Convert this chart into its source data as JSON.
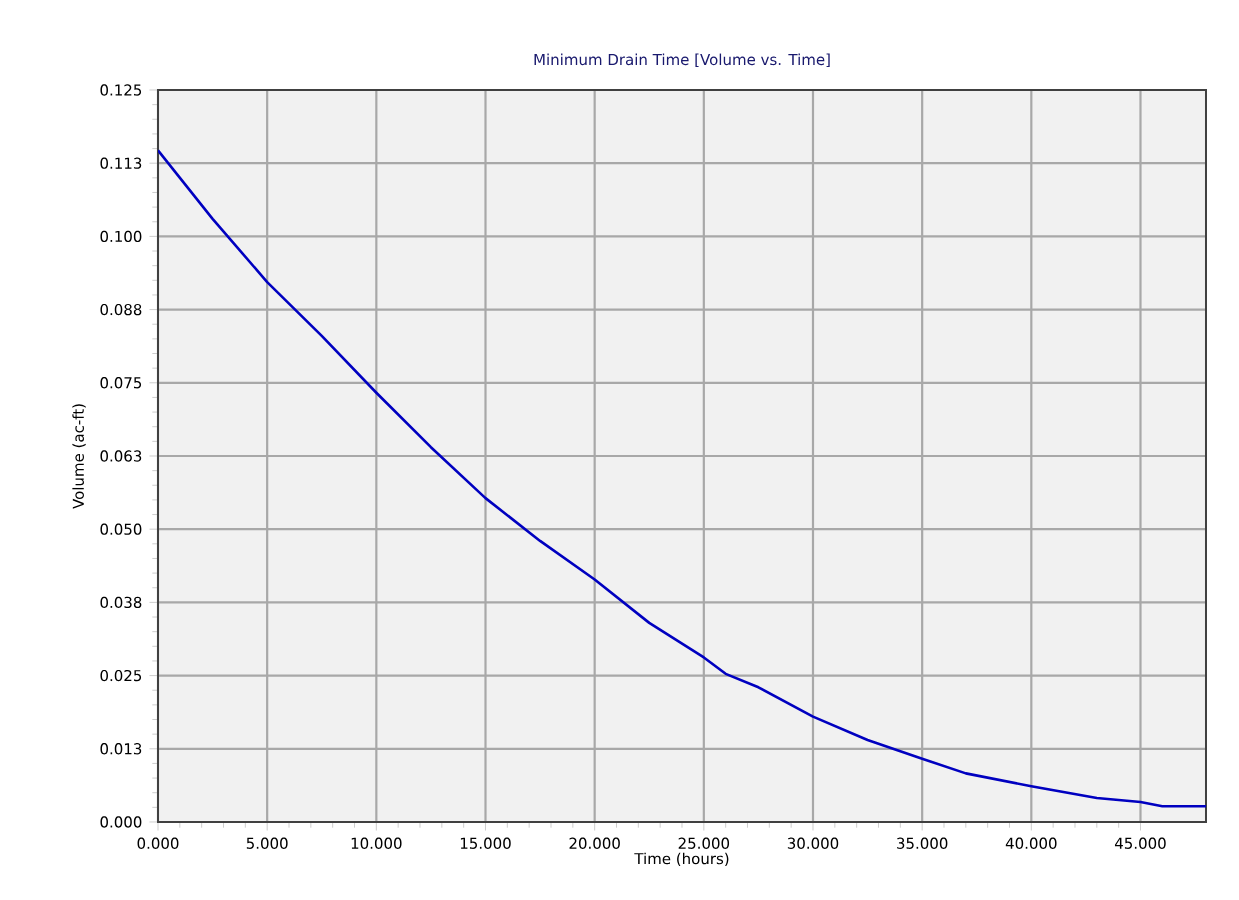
{
  "chart_data": {
    "type": "line",
    "title": "Minimum Drain Time [Volume vs. Time]",
    "xlabel": "Time (hours)",
    "ylabel": "Volume (ac-ft)",
    "x": [
      0,
      2.5,
      5,
      7.5,
      10,
      12.5,
      15,
      17.5,
      20,
      22.5,
      25,
      26,
      27.5,
      30,
      32.5,
      35,
      37,
      40,
      43,
      45,
      46,
      48
    ],
    "series": [
      {
        "color": "#0000c0",
        "values": [
          0.1147,
          0.103,
          0.0922,
          0.083,
          0.0733,
          0.064,
          0.0553,
          0.048,
          0.0414,
          0.034,
          0.0281,
          0.0253,
          0.023,
          0.018,
          0.014,
          0.0108,
          0.0083,
          0.0061,
          0.0041,
          0.0034,
          0.0027,
          0.0027
        ]
      }
    ],
    "xlim": [
      0,
      48
    ],
    "ylim": [
      0,
      0.125
    ],
    "xticks": [
      {
        "value": 0,
        "label": "0.000"
      },
      {
        "value": 5,
        "label": "5.000"
      },
      {
        "value": 10,
        "label": "10.000"
      },
      {
        "value": 15,
        "label": "15.000"
      },
      {
        "value": 20,
        "label": "20.000"
      },
      {
        "value": 25,
        "label": "25.000"
      },
      {
        "value": 30,
        "label": "30.000"
      },
      {
        "value": 35,
        "label": "35.000"
      },
      {
        "value": 40,
        "label": "40.000"
      },
      {
        "value": 45,
        "label": "45.000"
      }
    ],
    "yticks": [
      {
        "value": 0,
        "label": "0.000"
      },
      {
        "value": 0.0125,
        "label": "0.013"
      },
      {
        "value": 0.025,
        "label": "0.025"
      },
      {
        "value": 0.0375,
        "label": "0.038"
      },
      {
        "value": 0.05,
        "label": "0.050"
      },
      {
        "value": 0.0625,
        "label": "0.063"
      },
      {
        "value": 0.075,
        "label": "0.075"
      },
      {
        "value": 0.0875,
        "label": "0.088"
      },
      {
        "value": 0.1,
        "label": "0.100"
      },
      {
        "value": 0.1125,
        "label": "0.113"
      },
      {
        "value": 0.125,
        "label": "0.125"
      }
    ],
    "grid": true,
    "marker": "none",
    "line_style": "solid"
  }
}
